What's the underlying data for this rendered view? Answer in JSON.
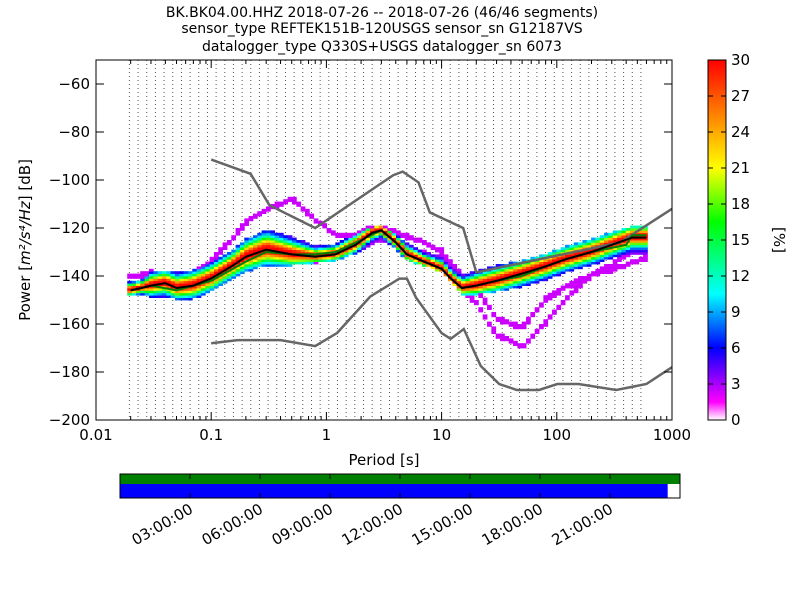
{
  "title": {
    "line1": "BK.BK04.00.HHZ   2018-07-26 -- 2018-07-26  (46/46 segments)",
    "line2": "sensor_type REFTEK151B-120USGS sensor_sn G12187VS",
    "line3": "datalogger_type Q330S+USGS datalogger_sn 6073"
  },
  "chart_data": {
    "type": "heatmap",
    "xlabel": "Period [s]",
    "ylabel_prefix": "Power [",
    "ylabel_unit": "m²/s⁴/Hz",
    "ylabel_suffix": "] [dB]",
    "xscale": "log",
    "xlim": [
      0.01,
      1000
    ],
    "ylim": [
      -200,
      -50
    ],
    "xticks": [
      0.01,
      0.1,
      1,
      10,
      100,
      1000
    ],
    "xtick_labels": [
      "0.01",
      "0.1",
      "1",
      "10",
      "100",
      "1000"
    ],
    "yticks": [
      -200,
      -180,
      -160,
      -140,
      -120,
      -100,
      -80,
      -60
    ],
    "ytick_labels": [
      "−200",
      "−180",
      "−160",
      "−140",
      "−120",
      "−100",
      "−80",
      "−60"
    ],
    "grid": "dotted vertical at period bins",
    "colorbar": {
      "label": "[%]",
      "range": [
        0,
        30
      ],
      "ticks": [
        0,
        3,
        6,
        9,
        12,
        15,
        18,
        21,
        24,
        27,
        30
      ],
      "tick_labels": [
        "0",
        "3",
        "6",
        "9",
        "12",
        "15",
        "18",
        "21",
        "24",
        "27",
        "30"
      ],
      "colormap": "pqlx"
    },
    "nhnm": {
      "name": "NHNM",
      "x": [
        0.1,
        0.22,
        0.32,
        0.8,
        3.8,
        4.6,
        6.3,
        7.9,
        15.4,
        20,
        354.8,
        1000
      ],
      "y": [
        -91.5,
        -97.4,
        -110.5,
        -120,
        -98,
        -96.5,
        -101,
        -113.5,
        -120,
        -138.5,
        -126,
        -112
      ]
    },
    "nlnm": {
      "name": "NLNM",
      "x": [
        0.1,
        0.17,
        0.4,
        0.8,
        1.24,
        2.4,
        4.3,
        5,
        6,
        10,
        12,
        15.6,
        21.9,
        31.6,
        45,
        70,
        101,
        154,
        328,
        600,
        1000
      ],
      "y": [
        -168,
        -166.7,
        -166.7,
        -169.2,
        -163.7,
        -148.6,
        -141.1,
        -141.1,
        -149,
        -163.8,
        -166.2,
        -162.1,
        -177.5,
        -185,
        -187.5,
        -187.5,
        -185,
        -185,
        -187.5,
        -185,
        -178
      ]
    },
    "mode_curve": {
      "name": "mode",
      "x": [
        0.02,
        0.025,
        0.03,
        0.04,
        0.05,
        0.07,
        0.1,
        0.15,
        0.2,
        0.3,
        0.5,
        0.8,
        1.2,
        1.8,
        2.5,
        3,
        4,
        5,
        7,
        10,
        12,
        15,
        20,
        30,
        50,
        80,
        120,
        200,
        300,
        450,
        600
      ],
      "y": [
        -146,
        -145,
        -144,
        -143,
        -145,
        -144,
        -141,
        -136,
        -132,
        -129,
        -131,
        -132,
        -131,
        -127,
        -122,
        -121,
        -126,
        -131,
        -134,
        -137,
        -141,
        -145,
        -144,
        -142,
        -139,
        -136,
        -133,
        -130,
        -127,
        -124,
        -124
      ]
    },
    "mean_curve": {
      "name": "mean",
      "x": [
        0.02,
        0.03,
        0.05,
        0.1,
        0.2,
        0.3,
        0.5,
        0.8,
        1.2,
        2,
        3,
        4,
        5,
        7,
        10,
        12,
        15,
        20,
        30,
        50,
        80,
        120,
        200,
        400,
        450,
        600
      ],
      "y": [
        -146,
        -144,
        -146,
        -142,
        -134,
        -130,
        -131,
        -131,
        -130,
        -125,
        -121,
        -126,
        -131,
        -134,
        -137,
        -141,
        -145,
        -144,
        -142,
        -140,
        -136,
        -133,
        -130,
        -127,
        -123,
        -123
      ]
    },
    "pdf_band": {
      "x": [
        0.02,
        0.025,
        0.03,
        0.04,
        0.05,
        0.07,
        0.1,
        0.15,
        0.2,
        0.3,
        0.5,
        0.8,
        1.2,
        1.8,
        2.5,
        3,
        4,
        5,
        7,
        10,
        12,
        15,
        20,
        30,
        50,
        80,
        120,
        200,
        300,
        450,
        600
      ],
      "lower": [
        -148,
        -148,
        -149,
        -149,
        -150,
        -150,
        -147,
        -142,
        -139,
        -136,
        -136,
        -135,
        -134,
        -131,
        -127,
        -126,
        -129,
        -134,
        -136,
        -139,
        -143,
        -148,
        -148,
        -147,
        -145,
        -142,
        -139,
        -136,
        -133,
        -131,
        -131
      ],
      "upper": [
        -143,
        -142,
        -139,
        -138,
        -139,
        -138,
        -135,
        -130,
        -125,
        -121,
        -124,
        -128,
        -127,
        -123,
        -120,
        -120,
        -123,
        -127,
        -130,
        -132,
        -136,
        -140,
        -138,
        -136,
        -134,
        -131,
        -128,
        -125,
        -122,
        -120,
        -120
      ],
      "outlier_low": [
        -147,
        -147,
        -146,
        -148,
        -149,
        -147,
        -140,
        -136,
        -131,
        -129,
        -134,
        -134,
        -130,
        -128,
        -124,
        -123,
        -124,
        -128,
        -131,
        -135,
        -140,
        -146,
        -152,
        -165,
        -170,
        -160,
        -150,
        -140,
        -138,
        -135,
        -133
      ],
      "outlier_high": [
        -140,
        -140,
        -139,
        -140,
        -140,
        -140,
        -134,
        -125,
        -118,
        -113,
        -108,
        -117,
        -123,
        -124,
        -120,
        -120,
        -122,
        -124,
        -126,
        -130,
        -135,
        -140,
        -146,
        -158,
        -162,
        -150,
        -145,
        -140,
        -136,
        -130,
        -128
      ]
    },
    "coverage_timeline": {
      "tick_labels": [
        "03:00:00",
        "06:00:00",
        "09:00:00",
        "12:00:00",
        "15:00:00",
        "18:00:00",
        "21:00:00"
      ],
      "green_fraction": 1.0,
      "blue_fraction": 0.978,
      "colors": {
        "green": "#008000",
        "blue": "#0000ff"
      }
    },
    "colors": {
      "noise_model": "#666666",
      "mode": "#000000",
      "mean": "#008000"
    }
  }
}
